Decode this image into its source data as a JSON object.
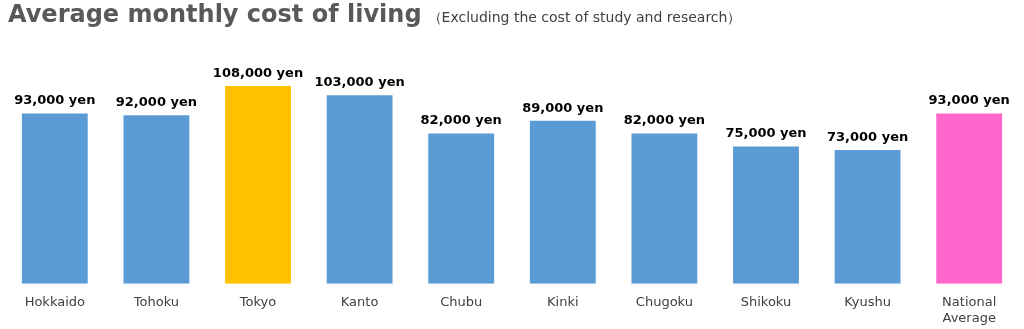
{
  "chart_data": {
    "type": "bar",
    "title": "Average monthly cost of living",
    "subtitle": "（Excluding the cost of study and research）",
    "categories": [
      "Hokkaido",
      "Tohoku",
      "Tokyo",
      "Kanto",
      "Chubu",
      "Kinki",
      "Chugoku",
      "Shikoku",
      "Kyushu",
      "National Average"
    ],
    "values": [
      93000,
      92000,
      108000,
      103000,
      82000,
      89000,
      82000,
      75000,
      73000,
      93000
    ],
    "colors": [
      "#5b9bd5",
      "#5b9bd5",
      "#ffc000",
      "#5b9bd5",
      "#5b9bd5",
      "#5b9bd5",
      "#5b9bd5",
      "#5b9bd5",
      "#5b9bd5",
      "#ff66cc"
    ],
    "value_labels": [
      "93,000 yen",
      "92,000 yen",
      "108,000 yen",
      "103,000 yen",
      "82,000 yen",
      "89,000 yen",
      "82,000 yen",
      "75,000 yen",
      "73,000 yen",
      "93,000 yen"
    ],
    "grid": false,
    "legend": false
  }
}
